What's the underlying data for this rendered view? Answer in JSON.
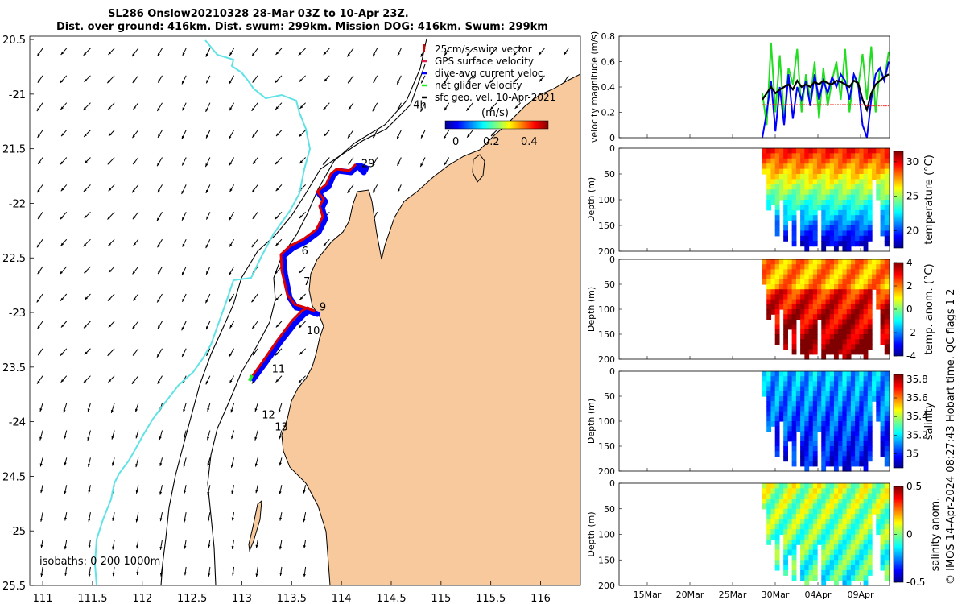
{
  "title": {
    "line1": "SL286 Onslow20210328 28-Mar 03Z to 10-Apr 23Z.",
    "line2": "Dist. over ground: 416km. Dist. swum: 299km. Mission DOG: 416km. Swum: 299km"
  },
  "map": {
    "lon_ticks": [
      "111",
      "111.5",
      "112",
      "112.5",
      "113",
      "113.5",
      "114",
      "114.5",
      "115",
      "115.5",
      "116"
    ],
    "lat_ticks": [
      "20.5",
      "-21",
      "21.5",
      "-22",
      "22.5",
      "-23",
      "23.5",
      "-24",
      "24.5",
      "-25",
      "25.5"
    ],
    "xlim": [
      110.87,
      116.4
    ],
    "ylim": [
      -25.5,
      -20.47
    ],
    "land_color": "#f8c99c",
    "coast_color": "#5fe3e6",
    "legend": [
      {
        "label": "25cm/s swim vector",
        "color": "#d40000",
        "marker": "line"
      },
      {
        "label": "GPS surface velocity",
        "color": "#e0204a",
        "marker": "dash"
      },
      {
        "label": "dive-avg current veloc",
        "color": "#0000ff",
        "marker": "dash"
      },
      {
        "label": "net glider velocity",
        "color": "#22ee22",
        "marker": "dash"
      },
      {
        "label": "sfc geo. vel. 10-Apr-2021",
        "color": "#000000",
        "marker": "dash"
      }
    ],
    "colorbar_label": "(m/s)",
    "colorbar_ticks": [
      "0",
      "0.2",
      "0.4"
    ],
    "isobath_label": "isobaths: 0   200  1000m",
    "annotations": [
      {
        "text": "4h",
        "lon": 114.72,
        "lat": -21.13
      },
      {
        "text": "29",
        "lon": 114.2,
        "lat": -21.67
      },
      {
        "text": "6",
        "lon": 113.6,
        "lat": -22.47
      },
      {
        "text": "7",
        "lon": 113.62,
        "lat": -22.75
      },
      {
        "text": "9",
        "lon": 113.78,
        "lat": -22.98
      },
      {
        "text": "10",
        "lon": 113.65,
        "lat": -23.2
      },
      {
        "text": "11",
        "lon": 113.3,
        "lat": -23.55
      },
      {
        "text": "12",
        "lon": 113.2,
        "lat": -23.97
      },
      {
        "text": "13",
        "lon": 113.33,
        "lat": -24.08
      }
    ]
  },
  "chart_data": [
    {
      "type": "line",
      "ylabel": "velocity magnitude (m/s)",
      "ylim": [
        0,
        0.8
      ],
      "yticks": [
        "0",
        "0.2",
        "0.4",
        "0.6",
        "0.8"
      ],
      "series": [
        {
          "color": "#22dd22",
          "values": [
            0.35,
            0.1,
            0.75,
            0.2,
            0.65,
            0.15,
            0.55,
            0.42,
            0.7,
            0.2,
            0.5,
            0.3,
            0.6,
            0.15,
            0.55,
            0.25,
            0.45,
            0.6,
            0.3,
            0.7,
            0.2,
            0.5,
            0.4,
            0.66,
            0.3,
            0.72,
            0.2,
            0.55,
            0.45,
            0.68
          ]
        },
        {
          "color": "#0000ff",
          "values": [
            0.0,
            0.2,
            0.45,
            0.05,
            0.4,
            0.1,
            0.5,
            0.15,
            0.4,
            0.3,
            0.45,
            0.25,
            0.5,
            0.3,
            0.45,
            0.35,
            0.48,
            0.4,
            0.5,
            0.45,
            0.3,
            0.5,
            0.42,
            0.1,
            0.0,
            0.3,
            0.5,
            0.55,
            0.45,
            0.6
          ]
        },
        {
          "color": "#000000",
          "values": [
            0.3,
            0.35,
            0.4,
            0.35,
            0.38,
            0.4,
            0.42,
            0.38,
            0.45,
            0.4,
            0.42,
            0.4,
            0.44,
            0.42,
            0.45,
            0.43,
            0.42,
            0.45,
            0.44,
            0.42,
            0.4,
            0.45,
            0.43,
            0.3,
            0.22,
            0.35,
            0.42,
            0.45,
            0.48,
            0.5
          ]
        },
        {
          "color": "#ff2222",
          "values": [
            0.26,
            0.26,
            0.26,
            0.26,
            0.26,
            0.26,
            0.26,
            0.26,
            0.26,
            0.26,
            0.26,
            0.26,
            0.26,
            0.26,
            0.26,
            0.26,
            0.26,
            0.26,
            0.26,
            0.26,
            0.26,
            0.26,
            0.26,
            0.26,
            0.25,
            0.25,
            0.25,
            0.25,
            0.25,
            0.25
          ]
        }
      ]
    },
    {
      "type": "heatmap",
      "ylabel": "Depth (m)",
      "ylim": [
        200,
        0
      ],
      "yticks": [
        "0",
        "50",
        "100",
        "150",
        "200"
      ],
      "cbar_label": "temperature (°C)",
      "cbar_ticks": [
        "20",
        "25",
        "30"
      ],
      "clim": [
        17.5,
        31.5
      ]
    },
    {
      "type": "heatmap",
      "ylabel": "Depth (m)",
      "ylim": [
        200,
        0
      ],
      "yticks": [
        "0",
        "50",
        "100",
        "150",
        "200"
      ],
      "cbar_label": "temp. anom. (°C)",
      "cbar_ticks": [
        "-4",
        "-2",
        "0",
        "2",
        "4"
      ],
      "clim": [
        -4,
        4
      ]
    },
    {
      "type": "heatmap",
      "ylabel": "Depth (m)",
      "ylim": [
        200,
        0
      ],
      "yticks": [
        "0",
        "50",
        "100",
        "150",
        "200"
      ],
      "cbar_label": "salinity",
      "cbar_ticks": [
        "35",
        "35.2",
        "35.4",
        "35.6",
        "35.8"
      ],
      "clim": [
        34.85,
        35.85
      ]
    },
    {
      "type": "heatmap",
      "ylabel": "Depth (m)",
      "ylim": [
        200,
        0
      ],
      "yticks": [
        "0",
        "50",
        "100",
        "150",
        "200"
      ],
      "cbar_label": "salinity anom.",
      "cbar_ticks": [
        "-0.5",
        "0",
        "0.5"
      ],
      "clim": [
        -0.5,
        0.5
      ]
    }
  ],
  "time_axis": {
    "labels": [
      "15Mar",
      "20Mar",
      "25Mar",
      "30Mar",
      "04Apr",
      "09Apr"
    ]
  },
  "side_label": {
    "text": "© IMOS 14-Apr-2024 08:27:43 Hobart time. QC flags 1  2"
  }
}
